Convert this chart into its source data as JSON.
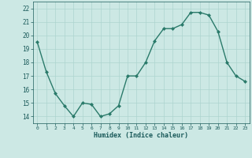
{
  "x": [
    0,
    1,
    2,
    3,
    4,
    5,
    6,
    7,
    8,
    9,
    10,
    11,
    12,
    13,
    14,
    15,
    16,
    17,
    18,
    19,
    20,
    21,
    22,
    23
  ],
  "y": [
    19.5,
    17.3,
    15.7,
    14.8,
    14.0,
    15.0,
    14.9,
    14.0,
    14.2,
    14.8,
    17.0,
    17.0,
    18.0,
    19.6,
    20.5,
    20.5,
    20.8,
    21.7,
    21.7,
    21.5,
    20.3,
    18.0,
    17.0,
    16.6
  ],
  "line_color": "#2a7a6a",
  "marker_color": "#2a7a6a",
  "bg_color": "#cce8e4",
  "grid_color": "#add4cf",
  "text_color": "#1a5a5a",
  "xlabel": "Humidex (Indice chaleur)",
  "ylim": [
    13.5,
    22.5
  ],
  "xlim": [
    -0.5,
    23.5
  ],
  "yticks": [
    14,
    15,
    16,
    17,
    18,
    19,
    20,
    21,
    22
  ],
  "xticks": [
    0,
    1,
    2,
    3,
    4,
    5,
    6,
    7,
    8,
    9,
    10,
    11,
    12,
    13,
    14,
    15,
    16,
    17,
    18,
    19,
    20,
    21,
    22,
    23
  ]
}
